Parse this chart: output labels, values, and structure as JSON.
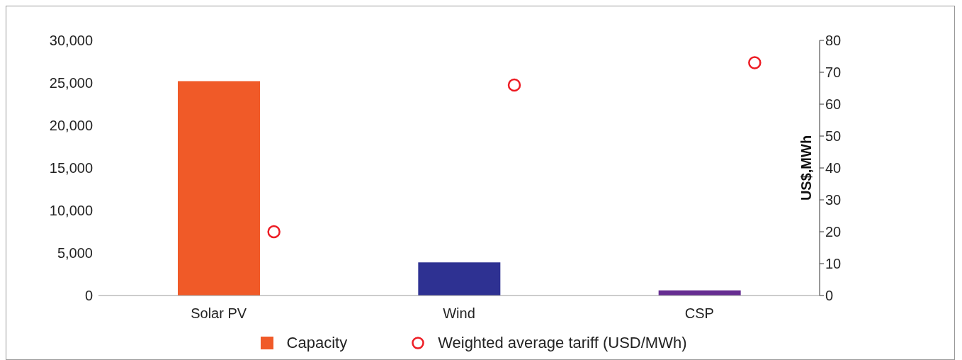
{
  "chart_data": {
    "type": "bar",
    "categories": [
      "Solar PV",
      "Wind",
      "CSP"
    ],
    "y2label": "US$,MWh",
    "ylim": [
      0,
      30000
    ],
    "yticks": [
      0,
      {
        "value": 5000,
        "label": "5,000"
      },
      {
        "value": 10000,
        "label": "10,000"
      },
      {
        "value": 15000,
        "label": "15,000"
      },
      {
        "value": 20000,
        "label": "20,000"
      },
      {
        "value": 25000,
        "label": "25,000"
      },
      {
        "value": 30000,
        "label": "30,000"
      }
    ],
    "y2lim": [
      0,
      80
    ],
    "y2ticks": [
      0,
      10,
      20,
      30,
      40,
      50,
      60,
      70,
      80
    ],
    "grid": false,
    "legend": "bottom",
    "marker": "circle",
    "series": [
      {
        "name": "Capacity",
        "color": "#f05a28",
        "colors": [
          "#f05a28",
          "#2e3192",
          "#662d91"
        ],
        "values": [
          25200,
          3900,
          600
        ]
      },
      {
        "name": "Weighted average tariff (USD/MWh)",
        "type": "scatter",
        "axis": "y2",
        "color": "#ed1c24",
        "values": [
          20,
          66,
          73
        ]
      }
    ]
  }
}
